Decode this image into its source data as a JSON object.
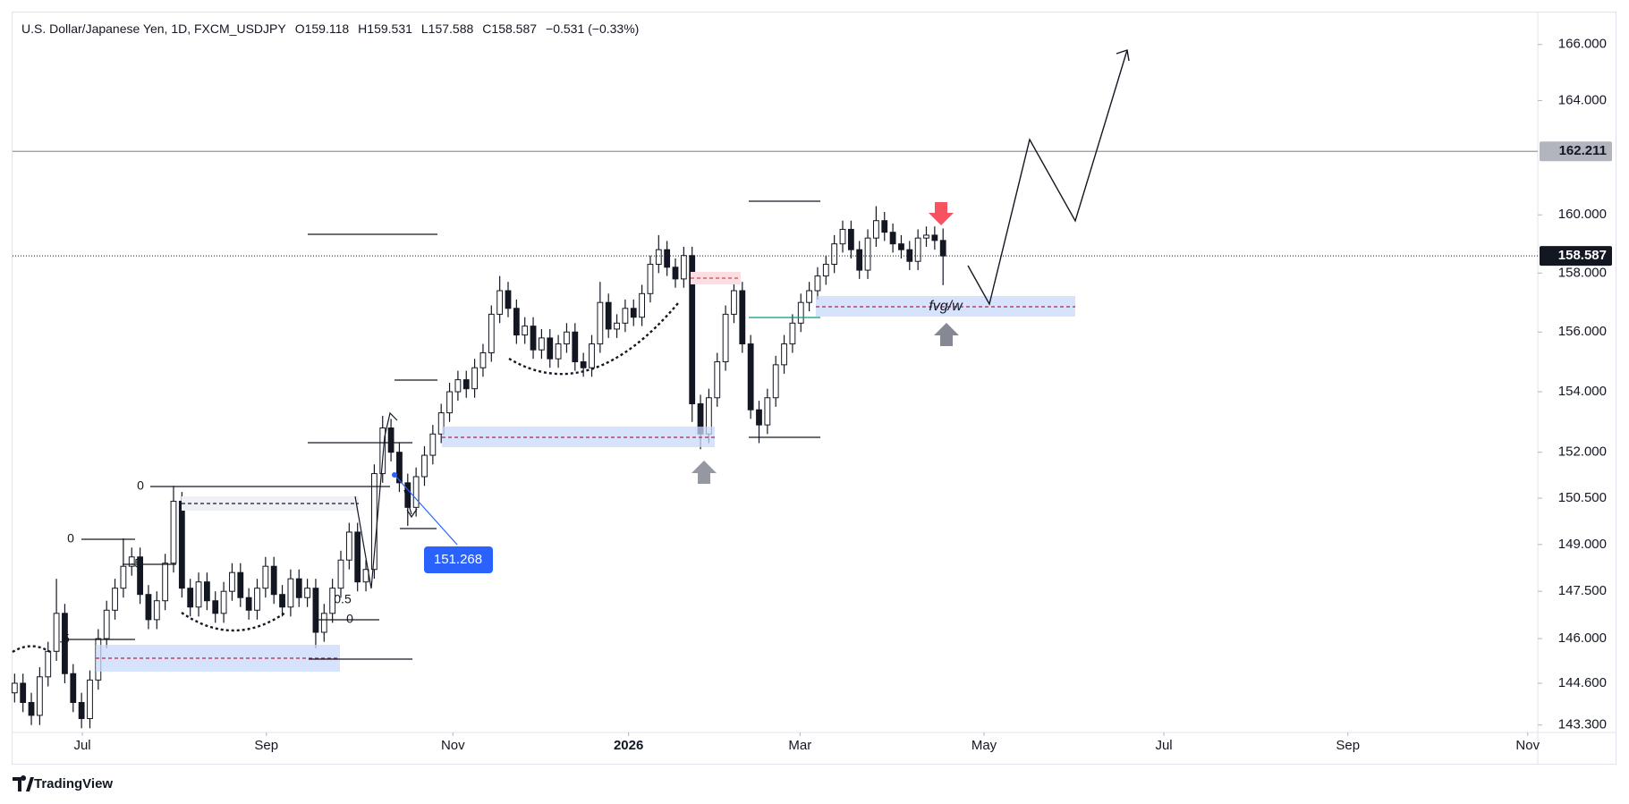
{
  "header": {
    "symbol": "U.S. Dollar/Japanese Yen, 1D, FXCM_USDJPY",
    "open": "O159.118",
    "high": "H159.531",
    "low": "L157.588",
    "close": "C158.587",
    "change": "−0.531 (−0.33%)"
  },
  "brand": "TradingView",
  "chart_data": {
    "type": "candlestick",
    "log": true,
    "grid": false,
    "up_color": "#ffffff",
    "down_color": "#131722",
    "wick_color": "#131722",
    "open": [
      144.3,
      144.6,
      144.0,
      143.6,
      144.8,
      145.6,
      146.8,
      144.9,
      144.0,
      143.5,
      144.7,
      146.0,
      146.9,
      147.6,
      148.3,
      148.6,
      147.4,
      146.6,
      147.2,
      148.4,
      150.4,
      147.6,
      147.0,
      147.8,
      147.2,
      146.8,
      147.5,
      148.1,
      147.3,
      146.9,
      147.6,
      148.3,
      147.4,
      147.0,
      147.9,
      147.3,
      147.6,
      146.2,
      146.8,
      147.6,
      148.5,
      149.4,
      147.8,
      148.2,
      151.3,
      152.8,
      152.0,
      151.0,
      150.2,
      151.2,
      151.9,
      152.6,
      153.3,
      154.0,
      154.4,
      154.1,
      154.8,
      155.3,
      156.6,
      157.4,
      156.8,
      155.9,
      156.2,
      155.4,
      155.8,
      155.1,
      155.6,
      156.0,
      155.0,
      154.8,
      155.6,
      157.0,
      156.1,
      156.3,
      156.8,
      156.5,
      157.3,
      158.3,
      158.8,
      158.2,
      157.8,
      158.6,
      153.6,
      152.6,
      153.8,
      155.0,
      156.6,
      157.4,
      155.6,
      153.4,
      152.9,
      153.8,
      154.9,
      155.6,
      156.3,
      157.0,
      157.4,
      157.9,
      158.3,
      159.0,
      159.5,
      158.8,
      158.1,
      159.2,
      159.8,
      159.4,
      159.0,
      158.8,
      158.4,
      159.2,
      159.3,
      159.118
    ],
    "high": [
      144.9,
      144.9,
      144.3,
      145.1,
      145.9,
      147.9,
      147.1,
      145.2,
      144.3,
      145.0,
      146.3,
      147.2,
      147.9,
      149.2,
      148.9,
      148.9,
      147.7,
      147.5,
      148.7,
      150.9,
      150.7,
      147.9,
      148.1,
      148.1,
      147.5,
      147.8,
      148.4,
      148.4,
      147.6,
      147.9,
      148.6,
      148.6,
      147.7,
      148.2,
      148.2,
      147.9,
      147.9,
      147.1,
      147.9,
      148.8,
      149.7,
      149.7,
      148.5,
      151.6,
      153.2,
      153.1,
      152.3,
      151.3,
      151.5,
      152.2,
      152.9,
      153.6,
      154.3,
      154.7,
      154.7,
      155.1,
      155.6,
      156.9,
      157.9,
      157.7,
      157.1,
      156.5,
      156.5,
      156.1,
      156.1,
      155.9,
      156.3,
      156.3,
      155.3,
      155.9,
      157.7,
      157.3,
      156.6,
      157.1,
      157.1,
      157.6,
      158.6,
      159.3,
      159.1,
      158.5,
      158.9,
      158.9,
      153.9,
      154.1,
      155.3,
      156.9,
      157.8,
      157.7,
      155.9,
      153.7,
      154.1,
      155.2,
      155.9,
      156.6,
      157.3,
      157.7,
      158.2,
      158.6,
      159.3,
      159.8,
      159.8,
      159.1,
      159.5,
      160.3,
      160.1,
      159.7,
      159.3,
      159.1,
      159.5,
      159.6,
      159.6,
      159.531
    ],
    "low": [
      144.0,
      143.7,
      143.3,
      143.3,
      144.5,
      145.3,
      144.6,
      143.7,
      143.2,
      143.2,
      144.4,
      145.7,
      146.6,
      147.3,
      148.0,
      147.1,
      146.3,
      146.3,
      146.9,
      148.1,
      147.3,
      146.7,
      146.7,
      146.9,
      146.5,
      146.5,
      147.2,
      147.0,
      146.6,
      146.6,
      147.3,
      147.1,
      146.7,
      146.7,
      147.0,
      147.0,
      145.7,
      145.9,
      146.5,
      147.3,
      148.2,
      147.5,
      147.5,
      147.9,
      151.0,
      151.7,
      150.7,
      149.6,
      149.9,
      150.9,
      151.6,
      152.3,
      153.0,
      153.7,
      153.8,
      153.8,
      154.5,
      155.0,
      156.3,
      156.5,
      155.6,
      155.6,
      155.1,
      155.1,
      154.8,
      154.8,
      155.3,
      154.7,
      154.5,
      154.5,
      155.3,
      155.8,
      155.8,
      156.0,
      156.2,
      156.2,
      157.0,
      158.0,
      157.9,
      157.5,
      157.5,
      153.0,
      152.1,
      152.3,
      153.5,
      154.7,
      156.3,
      155.3,
      153.1,
      152.3,
      152.6,
      153.5,
      154.6,
      155.3,
      156.0,
      156.7,
      157.1,
      157.6,
      158.0,
      158.7,
      158.5,
      157.8,
      157.8,
      158.9,
      159.1,
      158.7,
      158.5,
      158.1,
      158.1,
      158.9,
      158.8,
      157.588
    ],
    "close": [
      144.6,
      144.0,
      143.6,
      144.8,
      145.6,
      146.8,
      144.9,
      144.0,
      143.5,
      144.7,
      146.0,
      146.9,
      147.6,
      148.3,
      148.6,
      147.4,
      146.6,
      147.2,
      148.4,
      150.4,
      147.6,
      147.0,
      147.8,
      147.2,
      146.8,
      147.5,
      148.1,
      147.3,
      146.9,
      147.6,
      148.3,
      147.4,
      147.0,
      147.9,
      147.3,
      147.6,
      146.2,
      146.8,
      147.6,
      148.5,
      149.4,
      147.8,
      148.2,
      151.3,
      152.8,
      152.0,
      151.0,
      150.2,
      151.2,
      151.9,
      152.6,
      153.3,
      154.0,
      154.4,
      154.1,
      154.8,
      155.3,
      156.6,
      157.4,
      156.8,
      155.9,
      156.2,
      155.4,
      155.8,
      155.1,
      155.6,
      156.0,
      155.0,
      154.8,
      155.6,
      157.0,
      156.1,
      156.3,
      156.8,
      156.5,
      157.3,
      158.3,
      158.8,
      158.2,
      157.8,
      158.6,
      153.6,
      152.6,
      153.8,
      155.0,
      156.6,
      157.4,
      155.6,
      153.4,
      152.9,
      153.8,
      154.9,
      155.6,
      156.3,
      157.0,
      157.4,
      157.9,
      158.3,
      159.0,
      159.5,
      158.8,
      158.1,
      159.2,
      159.8,
      159.4,
      159.0,
      158.8,
      158.4,
      159.2,
      159.3,
      159.118,
      158.587
    ],
    "xlim": [
      -0.25,
      182.1
    ],
    "xticks": [
      {
        "value": 8.1,
        "label": "Jul"
      },
      {
        "value": 30.1,
        "label": "Sep"
      },
      {
        "value": 52.4,
        "label": "Nov"
      },
      {
        "value": 73.4,
        "label": "2026"
      },
      {
        "value": 93.9,
        "label": "Mar"
      },
      {
        "value": 115.9,
        "label": "May"
      },
      {
        "value": 137.4,
        "label": "Jul"
      },
      {
        "value": 159.4,
        "label": "Sep"
      },
      {
        "value": 180.9,
        "label": "Nov"
      }
    ],
    "ylim": [
      143.07,
      167.15
    ],
    "yticks": [
      {
        "value": 166,
        "label": "166.000"
      },
      {
        "value": 164,
        "label": "164.000"
      },
      {
        "value": 160,
        "label": "160.000"
      },
      {
        "value": 158,
        "label": "158.000"
      },
      {
        "value": 156,
        "label": "156.000"
      },
      {
        "value": 154,
        "label": "154.000"
      },
      {
        "value": 152,
        "label": "152.000"
      },
      {
        "value": 150.5,
        "label": "150.500"
      },
      {
        "value": 149,
        "label": "149.000"
      },
      {
        "value": 147.5,
        "label": "147.500"
      },
      {
        "value": 146,
        "label": "146.000"
      },
      {
        "value": 144.6,
        "label": "144.600"
      },
      {
        "value": 143.3,
        "label": "143.300"
      }
    ],
    "price_lines": [
      {
        "value": 162.211,
        "color": "#9598a1",
        "label_color": "#b2b5be",
        "text_color": "#131722"
      },
      {
        "value": 158.587,
        "color": "#131722",
        "label_color": "#131722",
        "text_color": "#ffffff"
      }
    ],
    "annotations": {
      "measure": "151.268",
      "zone": "fvg/w",
      "fib": [
        "0",
        "0",
        "·5",
        ".5",
        "0.5",
        "0"
      ]
    }
  }
}
